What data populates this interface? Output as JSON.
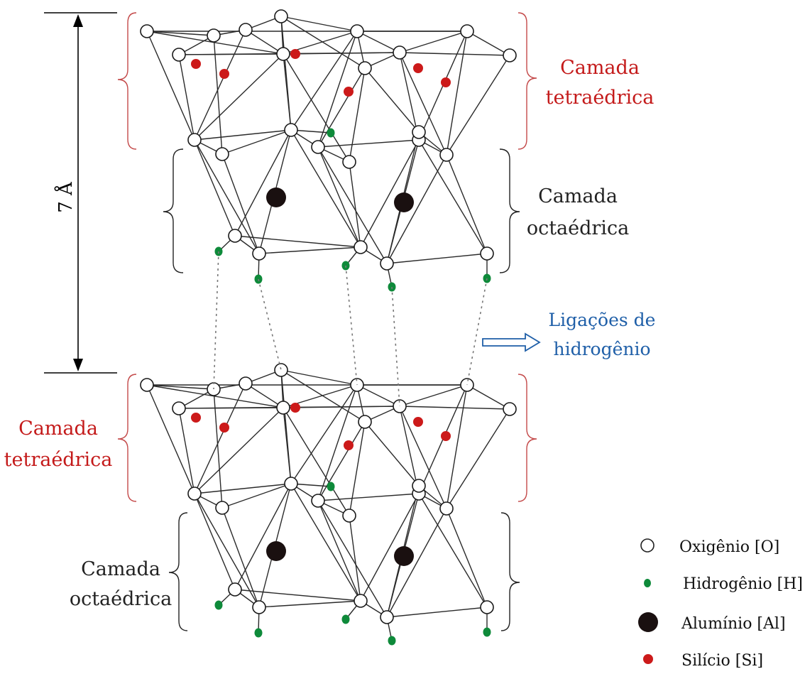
{
  "scale_label": "7 Å",
  "labels": {
    "top_tetra": [
      "Camada",
      "tetraédrica"
    ],
    "top_octa": [
      "Camada",
      "octaédrica"
    ],
    "hbond": [
      "Ligações de",
      "hidrogênio"
    ],
    "bottom_tetra": [
      "Camada",
      "tetraédrica"
    ],
    "bottom_octa": [
      "Camada",
      "octaédrica"
    ]
  },
  "legend": [
    {
      "symbol": "oxygen",
      "label": "Oxigênio [O]"
    },
    {
      "symbol": "hydrogen",
      "label": "Hidrogênio [H]"
    },
    {
      "symbol": "aluminum",
      "label": "Alumínio [Al]"
    },
    {
      "symbol": "silicon",
      "label": "Silício [Si]"
    }
  ],
  "colors": {
    "oxygen_fill": "#ffffff",
    "hydrogen": "#0e8a3a",
    "aluminum": "#1a1010",
    "silicon": "#cc1a1a",
    "tetra_label": "#c41a1a",
    "hbond_label": "#1f5fa8",
    "octa_label": "#222222",
    "tetra_brace": "#c44a4a",
    "octa_brace": "#222222"
  }
}
